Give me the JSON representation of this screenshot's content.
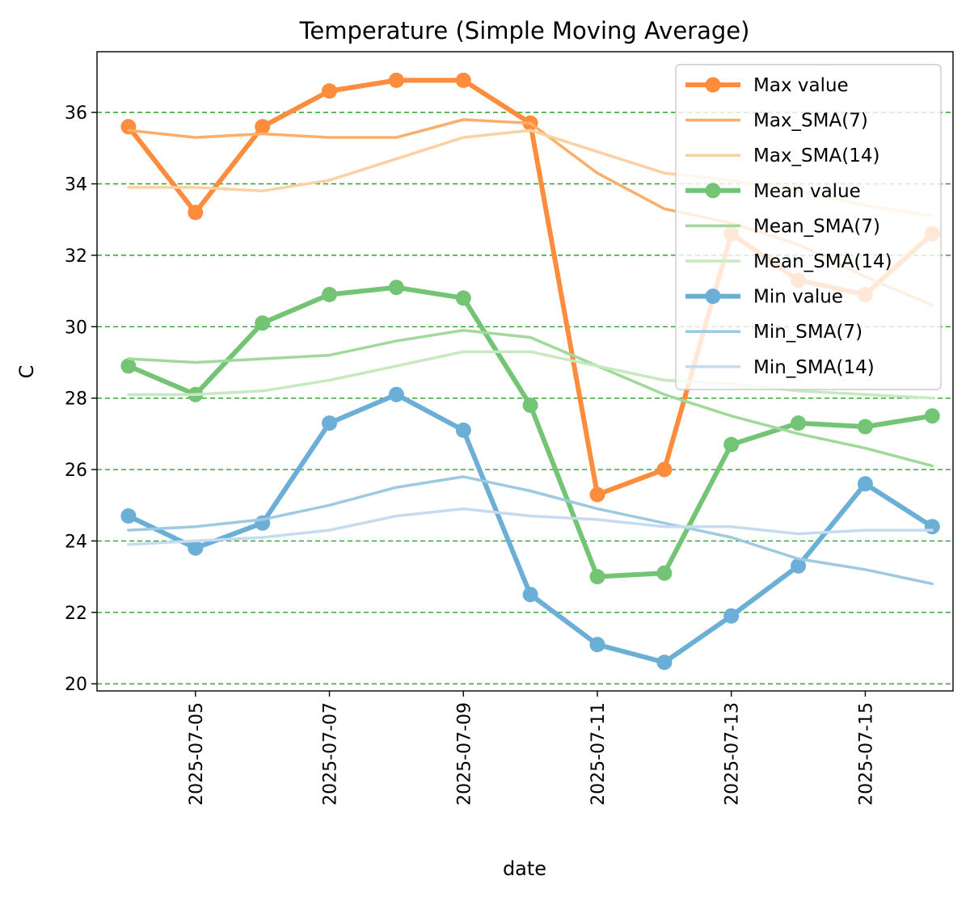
{
  "chart_data": {
    "type": "line",
    "title": "Temperature (Simple Moving Average)",
    "xlabel": "date",
    "ylabel": "C",
    "x": [
      "2025-07-04",
      "2025-07-05",
      "2025-07-06",
      "2025-07-07",
      "2025-07-08",
      "2025-07-09",
      "2025-07-10",
      "2025-07-11",
      "2025-07-12",
      "2025-07-13",
      "2025-07-14",
      "2025-07-15",
      "2025-07-16"
    ],
    "xticks": [
      "2025-07-05",
      "2025-07-07",
      "2025-07-09",
      "2025-07-11",
      "2025-07-13",
      "2025-07-15"
    ],
    "xlim": [
      "2025-07-03",
      "2025-07-16"
    ],
    "ylim": [
      19.8,
      37.7
    ],
    "yticks": [
      20,
      22,
      24,
      26,
      28,
      30,
      32,
      34,
      36
    ],
    "grid": "horizontal, dashed green",
    "legend": "top-right",
    "series": [
      {
        "name": "Max value",
        "color": "#fd8d3c",
        "style": "thick-marker",
        "values": [
          35.6,
          33.2,
          35.6,
          36.6,
          36.9,
          36.9,
          35.7,
          25.3,
          26.0,
          32.6,
          31.3,
          30.9,
          32.6
        ]
      },
      {
        "name": "Max_SMA(7)",
        "color": "#fdae6b",
        "style": "line",
        "values": [
          35.5,
          35.3,
          35.4,
          35.3,
          35.3,
          35.8,
          35.7,
          34.3,
          33.3,
          32.9,
          32.3,
          31.4,
          30.6
        ]
      },
      {
        "name": "Max_SMA(14)",
        "color": "#fdd0a2",
        "style": "line",
        "values": [
          33.9,
          33.9,
          33.8,
          34.1,
          34.7,
          35.3,
          35.5,
          34.9,
          34.3,
          34.1,
          33.8,
          33.4,
          33.1
        ]
      },
      {
        "name": "Mean value",
        "color": "#74c476",
        "style": "thick-marker",
        "values": [
          28.9,
          28.1,
          30.1,
          30.9,
          31.1,
          30.8,
          27.8,
          23.0,
          23.1,
          26.7,
          27.3,
          27.2,
          27.5
        ]
      },
      {
        "name": "Mean_SMA(7)",
        "color": "#a1d99b",
        "style": "line",
        "values": [
          29.1,
          29.0,
          29.1,
          29.2,
          29.6,
          29.9,
          29.7,
          28.9,
          28.1,
          27.5,
          27.0,
          26.6,
          26.1
        ]
      },
      {
        "name": "Mean_SMA(14)",
        "color": "#c7e9c0",
        "style": "line",
        "values": [
          28.1,
          28.1,
          28.2,
          28.5,
          28.9,
          29.3,
          29.3,
          28.9,
          28.5,
          28.4,
          28.2,
          28.1,
          28.0
        ]
      },
      {
        "name": "Min value",
        "color": "#6baed6",
        "style": "thick-marker",
        "values": [
          24.7,
          23.8,
          24.5,
          27.3,
          28.1,
          27.1,
          22.5,
          21.1,
          20.6,
          21.9,
          23.3,
          25.6,
          24.4
        ]
      },
      {
        "name": "Min_SMA(7)",
        "color": "#9ecae1",
        "style": "line",
        "values": [
          24.3,
          24.4,
          24.6,
          25.0,
          25.5,
          25.8,
          25.4,
          24.9,
          24.5,
          24.1,
          23.5,
          23.2,
          22.8
        ]
      },
      {
        "name": "Min_SMA(14)",
        "color": "#c6dbef",
        "style": "line",
        "values": [
          23.9,
          24.0,
          24.1,
          24.3,
          24.7,
          24.9,
          24.7,
          24.6,
          24.4,
          24.4,
          24.2,
          24.3,
          24.3
        ]
      }
    ]
  }
}
